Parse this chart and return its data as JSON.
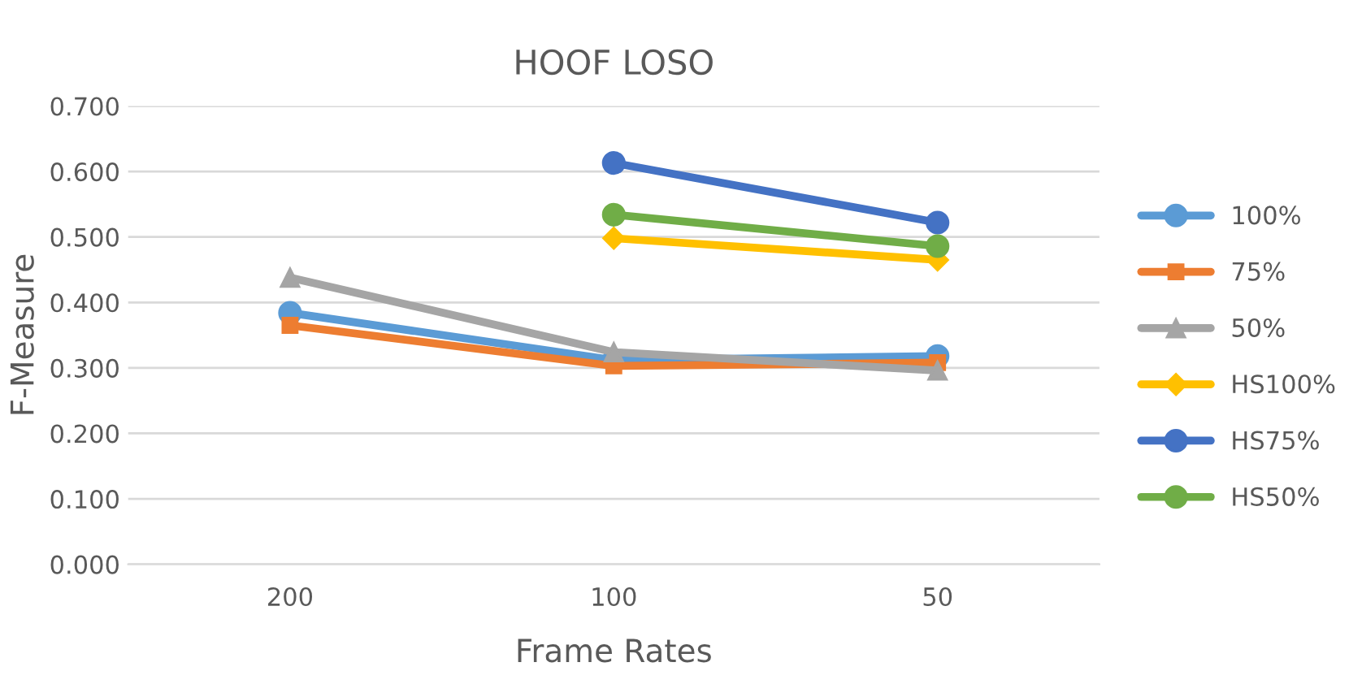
{
  "chart_data": {
    "type": "line",
    "title": "HOOF LOSO",
    "xlabel": "Frame Rates",
    "ylabel": "F-Measure",
    "categories": [
      "200",
      "100",
      "50"
    ],
    "series": [
      {
        "name": "100%",
        "color": "#5b9bd5",
        "marker": "circle",
        "values": [
          0.384,
          0.312,
          0.318
        ]
      },
      {
        "name": "75%",
        "color": "#ed7d31",
        "marker": "square",
        "values": [
          0.365,
          0.303,
          0.308
        ]
      },
      {
        "name": "50%",
        "color": "#a5a5a5",
        "marker": "triangle",
        "values": [
          0.438,
          0.324,
          0.296
        ]
      },
      {
        "name": "HS100%",
        "color": "#ffc000",
        "marker": "diamond",
        "values": [
          null,
          0.498,
          0.465
        ]
      },
      {
        "name": "HS75%",
        "color": "#4472c4",
        "marker": "circle",
        "values": [
          null,
          0.613,
          0.522
        ]
      },
      {
        "name": "HS50%",
        "color": "#70ad47",
        "marker": "circle",
        "values": [
          null,
          0.534,
          0.486
        ]
      }
    ],
    "ylim": [
      0,
      0.7
    ],
    "yticks": [
      {
        "value": 0,
        "label": "0.000"
      },
      {
        "value": 0.1,
        "label": "0.100"
      },
      {
        "value": 0.2,
        "label": "0.200"
      },
      {
        "value": 0.3,
        "label": "0.300"
      },
      {
        "value": 0.4,
        "label": "0.400"
      },
      {
        "value": 0.5,
        "label": "0.500"
      },
      {
        "value": 0.6,
        "label": "0.600"
      },
      {
        "value": 0.7,
        "label": "0.700"
      }
    ],
    "grid": "y",
    "legend": "right",
    "line_style": "solid"
  }
}
